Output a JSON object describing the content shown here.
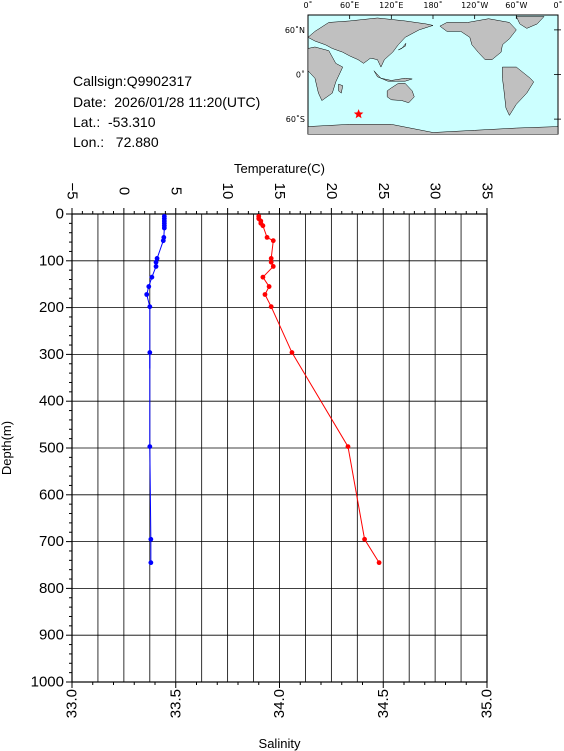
{
  "info": {
    "callsign": "Callsign:Q9902317",
    "date": "Date:  2026/01/28 11:20(UTC)",
    "lat": "Lat.:  -53.310",
    "lon": "Lon.:   72.880"
  },
  "map": {
    "lon_labels": [
      "0˚",
      "60˚E",
      "120˚E",
      "180˚",
      "120˚W",
      "60˚W",
      "0˚"
    ],
    "lat_labels": [
      "60˚N",
      "0˚",
      "60˚S"
    ],
    "ocean_color": "#ccffff",
    "land_color": "#c0c0c0",
    "marker_color": "#ff0000",
    "marker_lat": -53.31,
    "marker_lon": 72.88,
    "marker_icon": "star-icon"
  },
  "chart_data": {
    "type": "line",
    "top_axis_label": "Temperature(C)",
    "bottom_axis_label": "Salinity",
    "ylabel": "Depth(m)",
    "temp_range": [
      -5,
      35
    ],
    "sal_range": [
      33.0,
      35.0
    ],
    "depth_range": [
      0,
      1000
    ],
    "temp_ticks": [
      "−5",
      "0",
      "5",
      "10",
      "15",
      "20",
      "25",
      "30",
      "35"
    ],
    "sal_ticks": [
      "33.0",
      "33.5",
      "34.0",
      "34.5",
      "35.0"
    ],
    "depth_ticks": [
      "0",
      "100",
      "200",
      "300",
      "400",
      "500",
      "600",
      "700",
      "800",
      "900",
      "1000"
    ],
    "grid": true,
    "series": [
      {
        "axis": "temperature",
        "color": "#0000ff",
        "points": [
          [
            3.9,
            5
          ],
          [
            3.9,
            10
          ],
          [
            3.9,
            15
          ],
          [
            3.9,
            20
          ],
          [
            3.9,
            25
          ],
          [
            3.9,
            30
          ],
          [
            3.85,
            50
          ],
          [
            3.8,
            57
          ],
          [
            3.2,
            95
          ],
          [
            3.1,
            103
          ],
          [
            3.1,
            112
          ],
          [
            2.7,
            135
          ],
          [
            2.4,
            155
          ],
          [
            2.2,
            172
          ],
          [
            2.5,
            198
          ],
          [
            2.5,
            296
          ],
          [
            2.5,
            497
          ],
          [
            2.6,
            695
          ],
          [
            2.6,
            745
          ]
        ]
      },
      {
        "axis": "salinity",
        "color": "#ff0000",
        "points": [
          [
            33.9,
            5
          ],
          [
            33.9,
            10
          ],
          [
            33.91,
            15
          ],
          [
            33.91,
            20
          ],
          [
            33.92,
            25
          ],
          [
            33.94,
            50
          ],
          [
            33.97,
            57
          ],
          [
            33.96,
            95
          ],
          [
            33.96,
            103
          ],
          [
            33.97,
            112
          ],
          [
            33.92,
            135
          ],
          [
            33.95,
            155
          ],
          [
            33.93,
            172
          ],
          [
            33.96,
            198
          ],
          [
            34.06,
            296
          ],
          [
            34.33,
            497
          ],
          [
            34.41,
            695
          ],
          [
            34.48,
            745
          ]
        ]
      }
    ]
  }
}
